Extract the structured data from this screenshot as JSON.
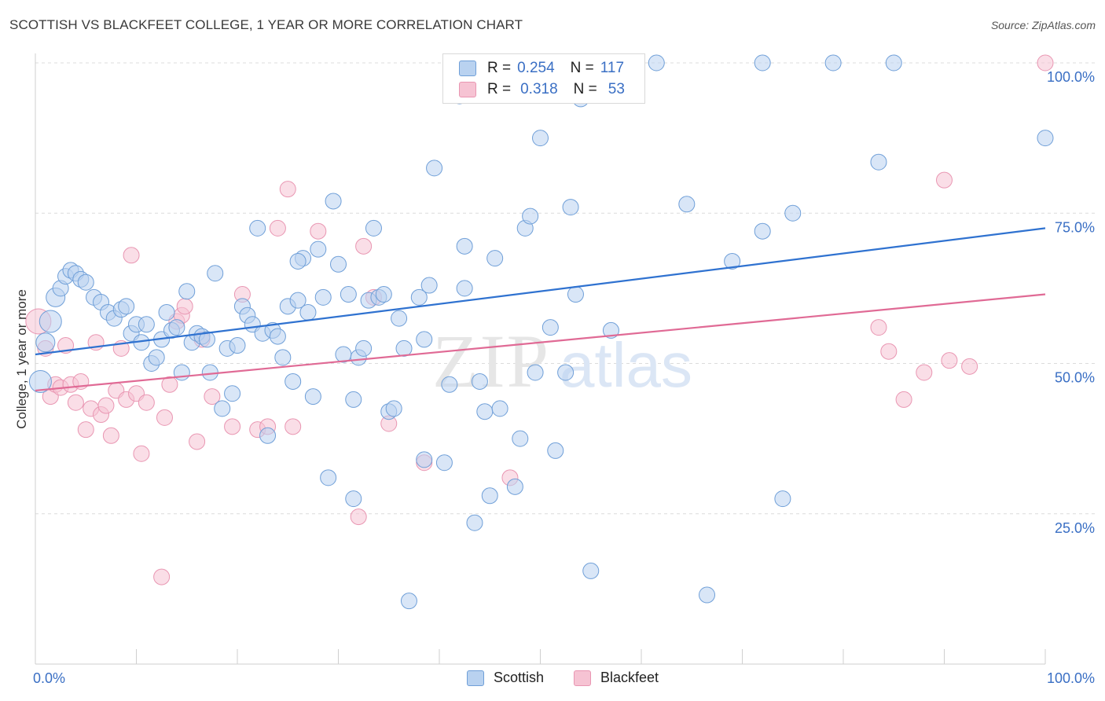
{
  "header": {
    "title": "SCOTTISH VS BLACKFEET COLLEGE, 1 YEAR OR MORE CORRELATION CHART",
    "source": "Source: ZipAtlas.com"
  },
  "legend": {
    "rows": [
      {
        "r_label": "R =",
        "r_value": "0.254",
        "n_label": "N =",
        "n_value": "117"
      },
      {
        "r_label": "R =",
        "r_value": "0.318",
        "n_label": "N =",
        "n_value": "53"
      }
    ]
  },
  "bottom_legend": [
    "Scottish",
    "Blackfeet"
  ],
  "watermark": {
    "zip": "ZIP",
    "atlas": "atlas"
  },
  "colors": {
    "scottish_fill": "#b9d2f0",
    "scottish_stroke": "#6f9fd8",
    "scottish_line": "#2f72d0",
    "blackfeet_fill": "#f6c3d3",
    "blackfeet_stroke": "#e996b2",
    "blackfeet_line": "#e06a95",
    "tick_label": "#3a6fc4",
    "grid": "#dcdcdc"
  },
  "chart_data": {
    "type": "scatter",
    "title": "SCOTTISH VS BLACKFEET COLLEGE, 1 YEAR OR MORE CORRELATION CHART",
    "xlabel": "",
    "ylabel": "College, 1 year or more",
    "xlim": [
      0,
      100
    ],
    "ylim": [
      0,
      100
    ],
    "x_tick_labels": [
      "0.0%",
      "100.0%"
    ],
    "y_ticks": [
      25,
      50,
      75,
      100
    ],
    "y_tick_labels": [
      "25.0%",
      "50.0%",
      "75.0%",
      "100.0%"
    ],
    "grid": true,
    "legend_position": "top-center",
    "series": [
      {
        "name": "Scottish",
        "r": 0.254,
        "n": 117,
        "trend": {
          "x": [
            0,
            100
          ],
          "y": [
            51.5,
            72.5
          ]
        },
        "points": [
          [
            0.5,
            47,
            14
          ],
          [
            1,
            53.5,
            12
          ],
          [
            1.5,
            57,
            14
          ],
          [
            2,
            61,
            12
          ],
          [
            2.5,
            62.5,
            10
          ],
          [
            3,
            64.5,
            10
          ],
          [
            3.5,
            65.5,
            10
          ],
          [
            4,
            65,
            10
          ],
          [
            4.5,
            64,
            10
          ],
          [
            5,
            63.5,
            10
          ],
          [
            5.8,
            61,
            10
          ],
          [
            6.5,
            60.2,
            10
          ],
          [
            7.2,
            58.5,
            10
          ],
          [
            7.8,
            57.5,
            10
          ],
          [
            8.5,
            59,
            10
          ],
          [
            9,
            59.5,
            10
          ],
          [
            9.5,
            55,
            10
          ],
          [
            10,
            56.5,
            10
          ],
          [
            10.5,
            53.5,
            10
          ],
          [
            11,
            56.5,
            10
          ],
          [
            11.5,
            50,
            10
          ],
          [
            12,
            51,
            10
          ],
          [
            12.5,
            54,
            10
          ],
          [
            13,
            58.5,
            10
          ],
          [
            13.5,
            55.5,
            10
          ],
          [
            14,
            56,
            10
          ],
          [
            14.5,
            48.5,
            10
          ],
          [
            15,
            62,
            10
          ],
          [
            15.5,
            53.5,
            10
          ],
          [
            16,
            55,
            10
          ],
          [
            16.5,
            54.5,
            10
          ],
          [
            17,
            54,
            10
          ],
          [
            17.3,
            48.5,
            10
          ],
          [
            17.8,
            65,
            10
          ],
          [
            18.5,
            42.5,
            10
          ],
          [
            19,
            52.5,
            10
          ],
          [
            19.5,
            45,
            10
          ],
          [
            20,
            53,
            10
          ],
          [
            20.5,
            59.5,
            10
          ],
          [
            21,
            58,
            10
          ],
          [
            21.5,
            56.5,
            10
          ],
          [
            22,
            72.5,
            10
          ],
          [
            22.5,
            55,
            10
          ],
          [
            23,
            38,
            10
          ],
          [
            23.5,
            55.5,
            10
          ],
          [
            24,
            54.5,
            10
          ],
          [
            24.5,
            51,
            10
          ],
          [
            25,
            59.5,
            10
          ],
          [
            25.5,
            47,
            10
          ],
          [
            26,
            60.5,
            10
          ],
          [
            26.5,
            67.5,
            10
          ],
          [
            27,
            58.5,
            10
          ],
          [
            27.5,
            44.5,
            10
          ],
          [
            28,
            69,
            10
          ],
          [
            28.5,
            61,
            10
          ],
          [
            29,
            31,
            10
          ],
          [
            29.5,
            77,
            10
          ],
          [
            30,
            66.5,
            10
          ],
          [
            30.5,
            51.5,
            10
          ],
          [
            31,
            61.5,
            10
          ],
          [
            31.5,
            27.5,
            10
          ],
          [
            31.5,
            44,
            10
          ],
          [
            32,
            51,
            10
          ],
          [
            32.5,
            52.5,
            10
          ],
          [
            33,
            60.5,
            10
          ],
          [
            33.5,
            72.5,
            10
          ],
          [
            34,
            61,
            10
          ],
          [
            35,
            42,
            10
          ],
          [
            35.5,
            42.5,
            10
          ],
          [
            36,
            57.5,
            10
          ],
          [
            36.5,
            52.5,
            10
          ],
          [
            37,
            10.5,
            10
          ],
          [
            38,
            61,
            10
          ],
          [
            38.5,
            54,
            10
          ],
          [
            39,
            63,
            10
          ],
          [
            39.5,
            82.5,
            10
          ],
          [
            40.5,
            33.5,
            10
          ],
          [
            41,
            46.5,
            10
          ],
          [
            42,
            94.5,
            10
          ],
          [
            42.5,
            62.5,
            10
          ],
          [
            42.5,
            69.5,
            10
          ],
          [
            43.5,
            23.5,
            10
          ],
          [
            44,
            47,
            10
          ],
          [
            44.5,
            42,
            10
          ],
          [
            45,
            28,
            10
          ],
          [
            45.5,
            67.5,
            10
          ],
          [
            46,
            42.5,
            10
          ],
          [
            47.5,
            29.5,
            10
          ],
          [
            48,
            37.5,
            10
          ],
          [
            48.5,
            72.5,
            10
          ],
          [
            49,
            74.5,
            10
          ],
          [
            49.5,
            48.5,
            10
          ],
          [
            50,
            87.5,
            10
          ],
          [
            51,
            56,
            10
          ],
          [
            51.5,
            35.5,
            10
          ],
          [
            52.5,
            48.5,
            10
          ],
          [
            53,
            76,
            10
          ],
          [
            53.5,
            61.5,
            10
          ],
          [
            54,
            94,
            10
          ],
          [
            55,
            15.5,
            10
          ],
          [
            57,
            55.5,
            10
          ],
          [
            59,
            100,
            10
          ],
          [
            61.5,
            100,
            10
          ],
          [
            64.5,
            76.5,
            10
          ],
          [
            66.5,
            11.5,
            10
          ],
          [
            69,
            67,
            10
          ],
          [
            72,
            100,
            10
          ],
          [
            72,
            72,
            10
          ],
          [
            74,
            27.5,
            10
          ],
          [
            75,
            75,
            10
          ],
          [
            79,
            100,
            10
          ],
          [
            83.5,
            83.5,
            10
          ],
          [
            85,
            100,
            10
          ],
          [
            100,
            87.5,
            10
          ],
          [
            38.5,
            34,
            10
          ],
          [
            34.5,
            61.5,
            10
          ],
          [
            26,
            67,
            10
          ]
        ]
      },
      {
        "name": "Blackfeet",
        "r": 0.318,
        "n": 53,
        "trend": {
          "x": [
            0,
            100
          ],
          "y": [
            45.5,
            61.5
          ]
        },
        "points": [
          [
            0.3,
            57,
            16
          ],
          [
            1,
            52.5,
            10
          ],
          [
            1.5,
            44.5,
            10
          ],
          [
            2,
            46.5,
            10
          ],
          [
            2.5,
            46,
            10
          ],
          [
            3,
            53,
            10
          ],
          [
            3.5,
            46.5,
            10
          ],
          [
            4,
            43.5,
            10
          ],
          [
            4.5,
            47,
            10
          ],
          [
            5,
            39,
            10
          ],
          [
            5.5,
            42.5,
            10
          ],
          [
            6,
            53.5,
            10
          ],
          [
            6.5,
            41.5,
            10
          ],
          [
            7,
            43,
            10
          ],
          [
            7.5,
            38,
            10
          ],
          [
            8,
            45.5,
            10
          ],
          [
            8.5,
            52.5,
            10
          ],
          [
            9,
            44,
            10
          ],
          [
            9.5,
            68,
            10
          ],
          [
            10,
            45,
            10
          ],
          [
            10.5,
            35,
            10
          ],
          [
            11,
            43.5,
            10
          ],
          [
            12.5,
            14.5,
            10
          ],
          [
            12.8,
            41,
            10
          ],
          [
            13.3,
            46.5,
            10
          ],
          [
            14,
            57,
            10
          ],
          [
            14.5,
            58,
            10
          ],
          [
            14.8,
            59.5,
            10
          ],
          [
            16,
            37,
            10
          ],
          [
            16.5,
            54,
            10
          ],
          [
            17.5,
            44.5,
            10
          ],
          [
            19.5,
            39.5,
            10
          ],
          [
            20.5,
            61.5,
            10
          ],
          [
            22,
            39,
            10
          ],
          [
            23,
            39.5,
            10
          ],
          [
            24,
            72.5,
            10
          ],
          [
            25,
            79,
            10
          ],
          [
            25.5,
            39.5,
            10
          ],
          [
            28,
            72,
            10
          ],
          [
            32,
            24.5,
            10
          ],
          [
            32.5,
            69.5,
            10
          ],
          [
            33.5,
            61,
            10
          ],
          [
            35,
            40,
            10
          ],
          [
            38.5,
            33.5,
            10
          ],
          [
            47,
            31,
            10
          ],
          [
            83.5,
            56,
            10
          ],
          [
            84.5,
            52,
            10
          ],
          [
            86,
            44,
            10
          ],
          [
            88,
            48.5,
            10
          ],
          [
            90,
            80.5,
            10
          ],
          [
            90.5,
            50.5,
            10
          ],
          [
            92.5,
            49.5,
            10
          ],
          [
            100,
            100,
            10
          ]
        ]
      }
    ]
  }
}
